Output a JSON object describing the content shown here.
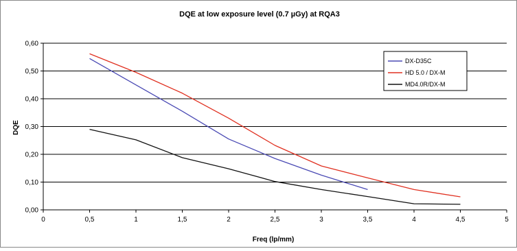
{
  "chart_data": {
    "type": "line",
    "title": "DQE at low exposure level (0.7 µGy) at RQA3",
    "xlabel": "Freq (lp/mm)",
    "ylabel": "DQE",
    "xlim": [
      0,
      5
    ],
    "ylim": [
      0,
      0.6
    ],
    "x_ticks": [
      "0",
      "0,5",
      "1",
      "1,5",
      "2",
      "2,5",
      "3",
      "3,5",
      "4",
      "4,5",
      "5"
    ],
    "y_ticks": [
      "0,00",
      "0,10",
      "0,20",
      "0,30",
      "0,40",
      "0,50",
      "0,60"
    ],
    "grid": "horizontal",
    "legend_position": "top-right",
    "series": [
      {
        "name": "DX-D35C",
        "color": "#4a4ab4",
        "x": [
          0.5,
          1,
          1.5,
          2,
          2.5,
          3,
          3.5
        ],
        "y": [
          0.545,
          0.45,
          0.355,
          0.255,
          0.185,
          0.125,
          0.073
        ]
      },
      {
        "name": "HD 5.0 / DX-M",
        "color": "#e03020",
        "x": [
          0.5,
          1,
          1.5,
          2,
          2.5,
          3,
          3.5,
          4,
          4.5
        ],
        "y": [
          0.562,
          0.495,
          0.42,
          0.33,
          0.232,
          0.158,
          0.115,
          0.073,
          0.047
        ]
      },
      {
        "name": "MD4.0R/DX-M",
        "color": "#111111",
        "x": [
          0.5,
          1,
          1.5,
          2,
          2.5,
          3,
          3.5,
          4,
          4.5
        ],
        "y": [
          0.29,
          0.252,
          0.188,
          0.148,
          0.102,
          0.073,
          0.048,
          0.022,
          0.02
        ]
      }
    ]
  }
}
